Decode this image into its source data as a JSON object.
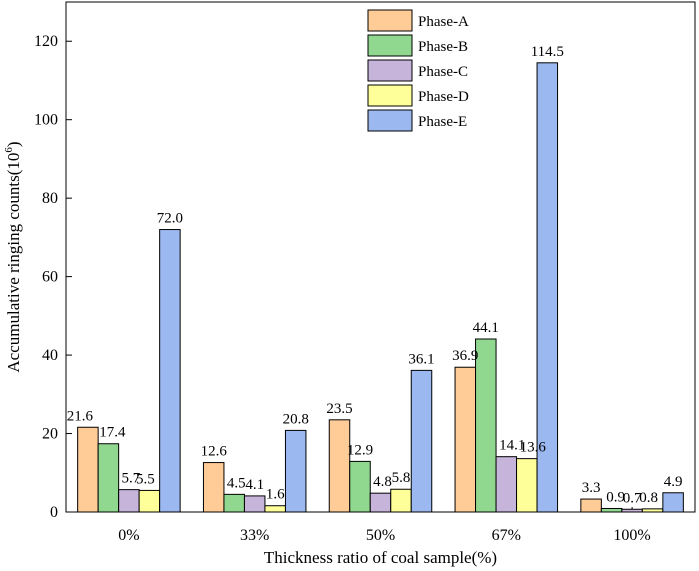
{
  "chart_data": {
    "type": "bar",
    "title": "",
    "xlabel": "Thickness ratio of coal sample(%)",
    "ylabel_main": "Accumulative ringing counts(10",
    "ylabel_exp": "6",
    "ylabel_close": ")",
    "categories": [
      "0%",
      "33%",
      "50%",
      "67%",
      "100%"
    ],
    "ylim": [
      0,
      130
    ],
    "yticks": [
      "0",
      "20",
      "40",
      "60",
      "80",
      "100",
      "120"
    ],
    "legend_position": "top-center",
    "series": [
      {
        "name": "Phase-A",
        "color": "#FFCB96",
        "values": [
          21.6,
          12.6,
          23.5,
          36.9,
          3.3
        ],
        "labels": [
          "21.6",
          "12.6",
          "23.5",
          "36.9",
          "3.3"
        ]
      },
      {
        "name": "Phase-B",
        "color": "#90D890",
        "values": [
          17.4,
          4.5,
          12.9,
          44.1,
          0.9
        ],
        "labels": [
          "17.4",
          "4.5",
          "12.9",
          "44.1",
          "0.9"
        ]
      },
      {
        "name": "Phase-C",
        "color": "#C6B4DA",
        "values": [
          5.7,
          4.1,
          4.8,
          14.1,
          0.7
        ],
        "labels": [
          "5.7",
          "4.1",
          "4.8",
          "14.1",
          "0.7"
        ]
      },
      {
        "name": "Phase-D",
        "color": "#FFFF9A",
        "values": [
          5.5,
          1.6,
          5.8,
          13.6,
          0.8
        ],
        "labels": [
          "5.5",
          "1.6",
          "5.8",
          "13.6",
          "0.8"
        ]
      },
      {
        "name": "Phase-E",
        "color": "#9CB8F0",
        "values": [
          72.0,
          20.8,
          36.1,
          114.5,
          4.9
        ],
        "labels": [
          "72.0",
          "20.8",
          "36.1",
          "114.5",
          "4.9"
        ]
      }
    ]
  }
}
